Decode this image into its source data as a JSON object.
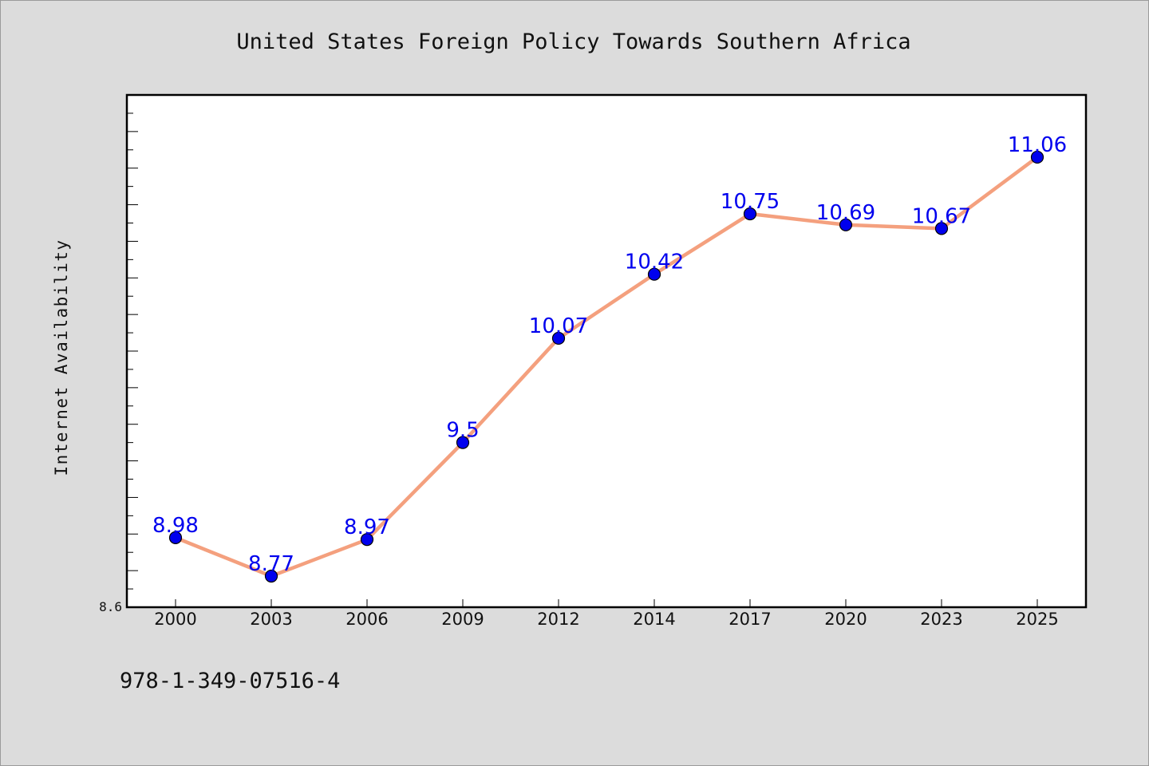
{
  "chart_data": {
    "type": "line",
    "title": "United States Foreign Policy Towards Southern Africa",
    "xlabel": "",
    "ylabel": "Internet Availability",
    "categories": [
      "2000",
      "2003",
      "2006",
      "2009",
      "2012",
      "2014",
      "2017",
      "2020",
      "2023",
      "2025"
    ],
    "series": [
      {
        "values": [
          8.98,
          8.77,
          8.97,
          9.5,
          10.07,
          10.42,
          10.75,
          10.69,
          10.67,
          11.06
        ],
        "data_labels": [
          "8.98",
          "8.77",
          "8.97",
          "9.5",
          "10.07",
          "10.42",
          "10.75",
          "10.69",
          "10.67",
          "11.06"
        ]
      }
    ],
    "ylim": [
      8.6,
      11.4
    ],
    "y_tick_labels": [
      "8.6"
    ],
    "grid": false,
    "legend": "none",
    "colors": {
      "line": "#f4a07e",
      "marker": "#0000ee",
      "data_label": "#0000ee"
    }
  },
  "footer": {
    "text": "978-1-349-07516-4"
  }
}
